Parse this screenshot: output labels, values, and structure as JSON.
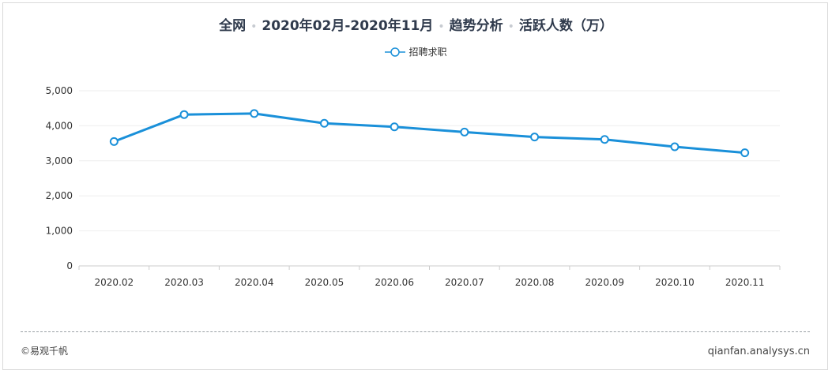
{
  "title_parts": {
    "scope": "全网",
    "period": "2020年02月-2020年11月",
    "view": "趋势分析",
    "metric": "活跃人数（万）"
  },
  "footer": {
    "left": "©易观千帆",
    "right": "qianfan.analysys.cn"
  },
  "colors": {
    "series": "#1a90d9",
    "grid": "#eeeeee",
    "axis": "#cccccc"
  },
  "chart_data": {
    "type": "line",
    "title": "全网 · 2020年02月-2020年11月 · 趋势分析 · 活跃人数（万）",
    "categories": [
      "2020.02",
      "2020.03",
      "2020.04",
      "2020.05",
      "2020.06",
      "2020.07",
      "2020.08",
      "2020.09",
      "2020.10",
      "2020.11"
    ],
    "series": [
      {
        "name": "招聘求职",
        "values": [
          3550,
          4320,
          4350,
          4070,
          3970,
          3820,
          3680,
          3610,
          3400,
          3230
        ]
      }
    ],
    "ylim": [
      0,
      5000
    ],
    "yticks": [
      "0",
      "1,000",
      "2,000",
      "3,000",
      "4,000",
      "5,000"
    ],
    "ytick_values": [
      0,
      1000,
      2000,
      3000,
      4000,
      5000
    ],
    "grid": true,
    "legend": "top-center"
  }
}
